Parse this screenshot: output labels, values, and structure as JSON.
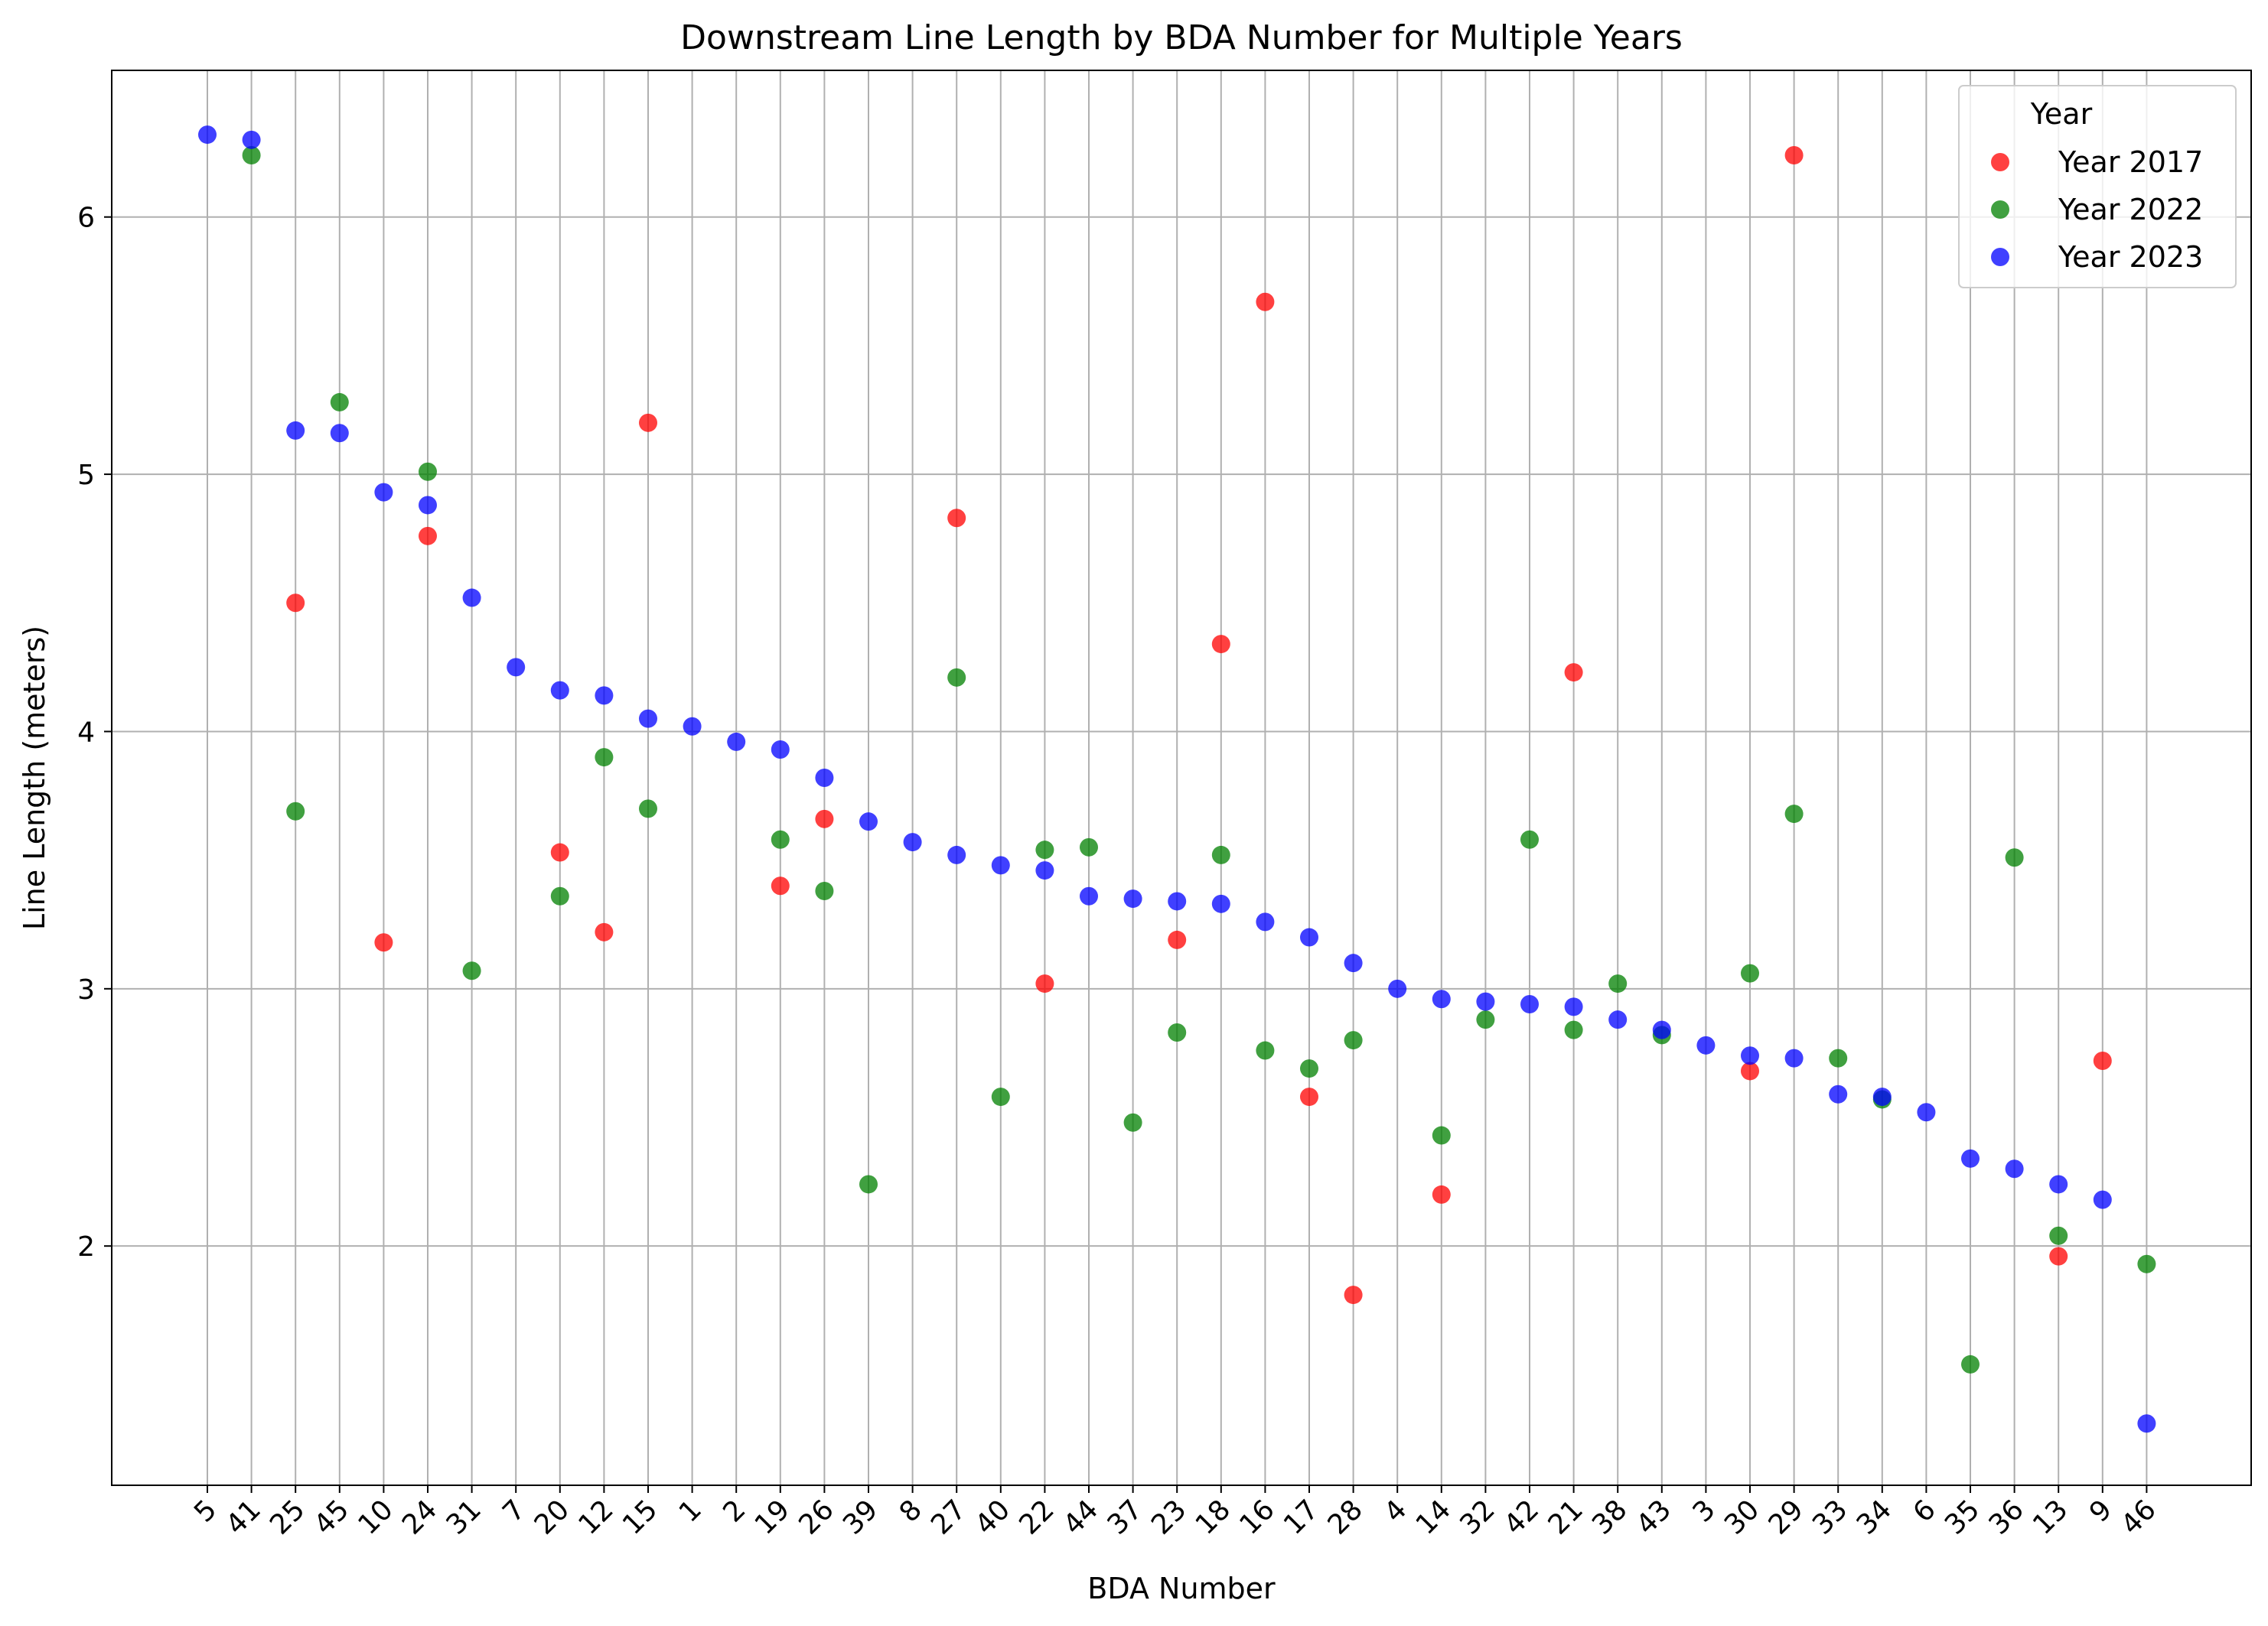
{
  "chart_data": {
    "type": "scatter",
    "title": "Downstream Line Length by BDA Number for Multiple Years",
    "xlabel": "BDA Number",
    "ylabel": "Line Length (meters)",
    "categories": [
      "5",
      "41",
      "25",
      "45",
      "10",
      "24",
      "31",
      "7",
      "20",
      "12",
      "15",
      "1",
      "2",
      "19",
      "26",
      "39",
      "8",
      "27",
      "40",
      "22",
      "44",
      "37",
      "23",
      "18",
      "16",
      "17",
      "28",
      "4",
      "14",
      "32",
      "42",
      "21",
      "38",
      "43",
      "3",
      "30",
      "29",
      "33",
      "34",
      "6",
      "35",
      "36",
      "13",
      "9",
      "46"
    ],
    "yticks": [
      2,
      3,
      4,
      5,
      6
    ],
    "ylim": [
      1.07,
      6.57
    ],
    "grid": true,
    "legend": {
      "title": "Year",
      "placement": "top-right"
    },
    "series": [
      {
        "name": "Year 2017",
        "color": "#ff0000",
        "points": [
          {
            "x": "25",
            "y": 4.5
          },
          {
            "x": "10",
            "y": 3.18
          },
          {
            "x": "24",
            "y": 4.76
          },
          {
            "x": "20",
            "y": 3.53
          },
          {
            "x": "12",
            "y": 3.22
          },
          {
            "x": "15",
            "y": 5.2
          },
          {
            "x": "19",
            "y": 3.4
          },
          {
            "x": "26",
            "y": 3.66
          },
          {
            "x": "27",
            "y": 4.83
          },
          {
            "x": "22",
            "y": 3.02
          },
          {
            "x": "23",
            "y": 3.19
          },
          {
            "x": "18",
            "y": 4.34
          },
          {
            "x": "16",
            "y": 5.67
          },
          {
            "x": "17",
            "y": 2.58
          },
          {
            "x": "28",
            "y": 1.81
          },
          {
            "x": "14",
            "y": 2.2
          },
          {
            "x": "21",
            "y": 4.23
          },
          {
            "x": "30",
            "y": 2.68
          },
          {
            "x": "29",
            "y": 6.24
          },
          {
            "x": "13",
            "y": 1.96
          },
          {
            "x": "9",
            "y": 2.72
          }
        ]
      },
      {
        "name": "Year 2022",
        "color": "#008000",
        "points": [
          {
            "x": "41",
            "y": 6.24
          },
          {
            "x": "25",
            "y": 3.69
          },
          {
            "x": "45",
            "y": 5.28
          },
          {
            "x": "24",
            "y": 5.01
          },
          {
            "x": "31",
            "y": 3.07
          },
          {
            "x": "20",
            "y": 3.36
          },
          {
            "x": "12",
            "y": 3.9
          },
          {
            "x": "15",
            "y": 3.7
          },
          {
            "x": "19",
            "y": 3.58
          },
          {
            "x": "26",
            "y": 3.38
          },
          {
            "x": "39",
            "y": 2.24
          },
          {
            "x": "27",
            "y": 4.21
          },
          {
            "x": "40",
            "y": 2.58
          },
          {
            "x": "22",
            "y": 3.54
          },
          {
            "x": "44",
            "y": 3.55
          },
          {
            "x": "37",
            "y": 2.48
          },
          {
            "x": "23",
            "y": 2.83
          },
          {
            "x": "18",
            "y": 3.52
          },
          {
            "x": "16",
            "y": 2.76
          },
          {
            "x": "17",
            "y": 2.69
          },
          {
            "x": "28",
            "y": 2.8
          },
          {
            "x": "14",
            "y": 2.43
          },
          {
            "x": "32",
            "y": 2.88
          },
          {
            "x": "42",
            "y": 3.58
          },
          {
            "x": "21",
            "y": 2.84
          },
          {
            "x": "38",
            "y": 3.02
          },
          {
            "x": "43",
            "y": 2.82
          },
          {
            "x": "30",
            "y": 3.06
          },
          {
            "x": "29",
            "y": 3.68
          },
          {
            "x": "33",
            "y": 2.73
          },
          {
            "x": "34",
            "y": 2.57
          },
          {
            "x": "35",
            "y": 1.54
          },
          {
            "x": "36",
            "y": 3.51
          },
          {
            "x": "13",
            "y": 2.04
          },
          {
            "x": "46",
            "y": 1.93
          }
        ]
      },
      {
        "name": "Year 2023",
        "color": "#0000ff",
        "points": [
          {
            "x": "5",
            "y": 6.32
          },
          {
            "x": "41",
            "y": 6.3
          },
          {
            "x": "25",
            "y": 5.17
          },
          {
            "x": "45",
            "y": 5.16
          },
          {
            "x": "10",
            "y": 4.93
          },
          {
            "x": "24",
            "y": 4.88
          },
          {
            "x": "31",
            "y": 4.52
          },
          {
            "x": "7",
            "y": 4.25
          },
          {
            "x": "20",
            "y": 4.16
          },
          {
            "x": "12",
            "y": 4.14
          },
          {
            "x": "15",
            "y": 4.05
          },
          {
            "x": "1",
            "y": 4.02
          },
          {
            "x": "2",
            "y": 3.96
          },
          {
            "x": "19",
            "y": 3.93
          },
          {
            "x": "26",
            "y": 3.82
          },
          {
            "x": "39",
            "y": 3.65
          },
          {
            "x": "8",
            "y": 3.57
          },
          {
            "x": "27",
            "y": 3.52
          },
          {
            "x": "40",
            "y": 3.48
          },
          {
            "x": "22",
            "y": 3.46
          },
          {
            "x": "44",
            "y": 3.36
          },
          {
            "x": "37",
            "y": 3.35
          },
          {
            "x": "23",
            "y": 3.34
          },
          {
            "x": "18",
            "y": 3.33
          },
          {
            "x": "16",
            "y": 3.26
          },
          {
            "x": "17",
            "y": 3.2
          },
          {
            "x": "28",
            "y": 3.1
          },
          {
            "x": "4",
            "y": 3.0
          },
          {
            "x": "14",
            "y": 2.96
          },
          {
            "x": "32",
            "y": 2.95
          },
          {
            "x": "42",
            "y": 2.94
          },
          {
            "x": "21",
            "y": 2.93
          },
          {
            "x": "38",
            "y": 2.88
          },
          {
            "x": "43",
            "y": 2.84
          },
          {
            "x": "3",
            "y": 2.78
          },
          {
            "x": "30",
            "y": 2.74
          },
          {
            "x": "29",
            "y": 2.73
          },
          {
            "x": "33",
            "y": 2.59
          },
          {
            "x": "34",
            "y": 2.58
          },
          {
            "x": "6",
            "y": 2.52
          },
          {
            "x": "35",
            "y": 2.34
          },
          {
            "x": "36",
            "y": 2.3
          },
          {
            "x": "13",
            "y": 2.24
          },
          {
            "x": "9",
            "y": 2.18
          },
          {
            "x": "46",
            "y": 1.31
          }
        ]
      }
    ]
  }
}
